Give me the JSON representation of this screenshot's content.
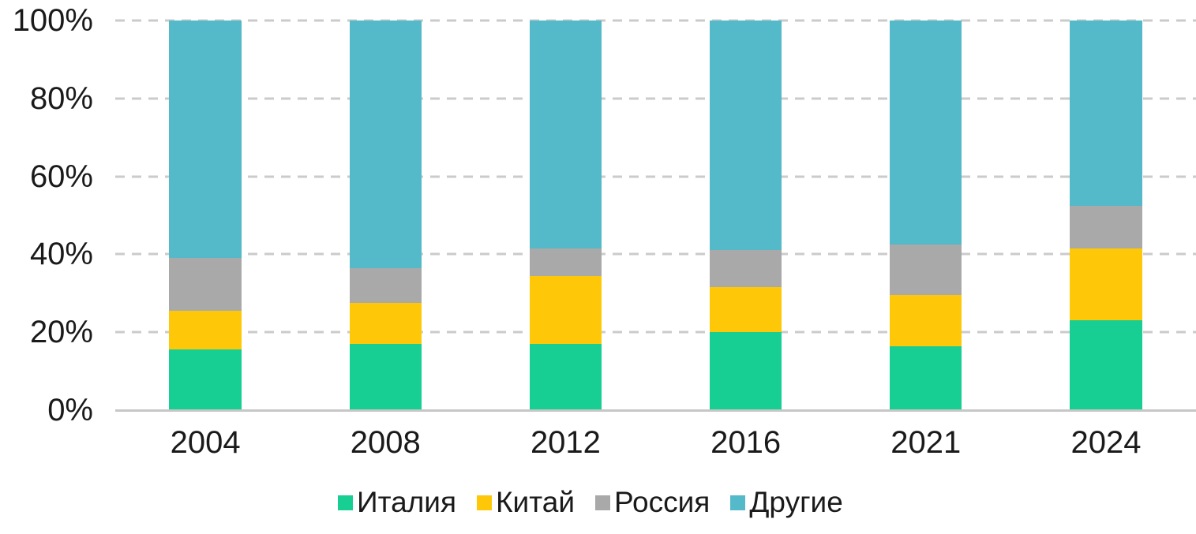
{
  "chart_data": {
    "type": "bar",
    "variant": "stacked-100-percent",
    "categories": [
      "2004",
      "2008",
      "2012",
      "2016",
      "2021",
      "2024"
    ],
    "series": [
      {
        "name": "Италия",
        "color": "#17CE93",
        "values": [
          15.5,
          17,
          17,
          20,
          16.5,
          23
        ]
      },
      {
        "name": "Китай",
        "color": "#FEC808",
        "values": [
          10,
          10.5,
          17.5,
          11.5,
          13,
          18.5
        ]
      },
      {
        "name": "Россия",
        "color": "#A9A9A9",
        "values": [
          13.5,
          9,
          7,
          9.5,
          13,
          11
        ]
      },
      {
        "name": "Другие",
        "color": "#54B9C8",
        "values": [
          61,
          63.5,
          58.5,
          59,
          57.5,
          47.5
        ]
      }
    ],
    "title": "",
    "xlabel": "",
    "ylabel": "",
    "y_axis": {
      "ticks": [
        "100%",
        "80%",
        "60%",
        "40%",
        "20%",
        "0%"
      ],
      "min": 0,
      "max": 100,
      "grid": "dashed"
    },
    "legend": {
      "position": "bottom",
      "entries": [
        "Италия",
        "Китай",
        "Россия",
        "Другие"
      ]
    },
    "colors": {
      "gridline": "#CBCBCB",
      "axis_line": "#C7C7C7",
      "text": "#1A1A1A",
      "background": "#FFFFFF"
    }
  }
}
